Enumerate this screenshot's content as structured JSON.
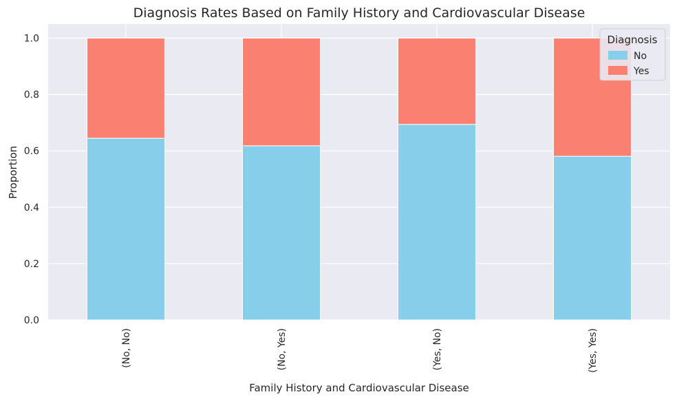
{
  "chart_data": {
    "type": "bar",
    "stacked": true,
    "title": "Diagnosis Rates Based on Family History and Cardiovascular Disease",
    "xlabel": "Family History and Cardiovascular Disease",
    "ylabel": "Proportion",
    "categories": [
      "(No, No)",
      "(No, Yes)",
      "(Yes, No)",
      "(Yes, Yes)"
    ],
    "series": [
      {
        "name": "No",
        "color": "#87CEEB",
        "values": [
          0.645,
          0.618,
          0.694,
          0.581
        ]
      },
      {
        "name": "Yes",
        "color": "#FA8072",
        "values": [
          0.355,
          0.382,
          0.306,
          0.419
        ]
      }
    ],
    "ylim": [
      0,
      1.05
    ],
    "yticks": [
      0.0,
      0.2,
      0.4,
      0.6,
      0.8,
      1.0
    ],
    "ytick_labels": [
      "0.0",
      "0.2",
      "0.4",
      "0.6",
      "0.8",
      "1.0"
    ],
    "grid": true,
    "legend": {
      "title": "Diagnosis",
      "placement": "top-right"
    },
    "colors": {
      "plot_background": "#EAEAF2",
      "grid": "#FFFFFF"
    }
  }
}
